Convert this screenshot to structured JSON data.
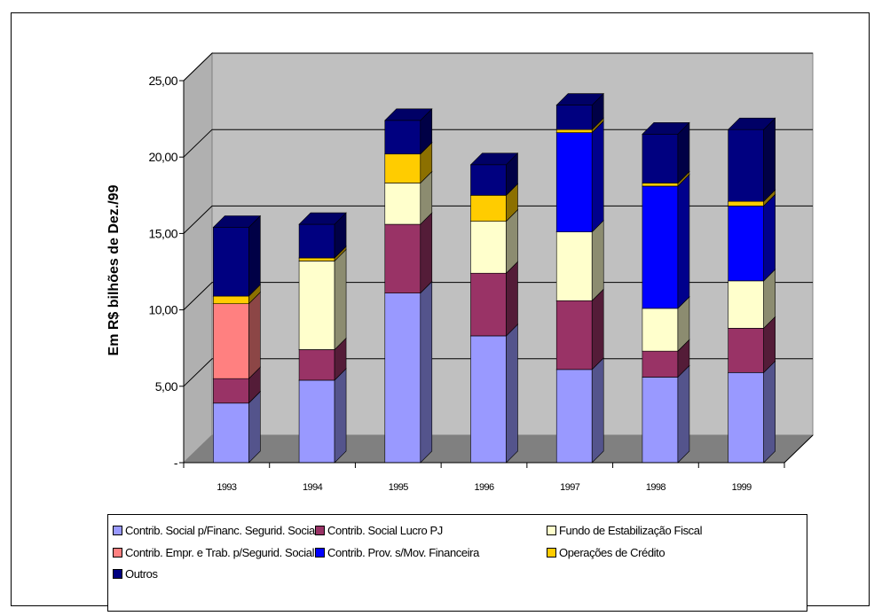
{
  "chart_data": {
    "type": "bar",
    "stacked": true,
    "three_d": true,
    "ylabel": "Em R$ bilhões de Dez./99",
    "ylim": [
      0,
      25
    ],
    "yticks": [
      "-",
      "5,00",
      "10,00",
      "15,00",
      "20,00",
      "25,00"
    ],
    "grid": true,
    "legend_position": "bottom",
    "categories": [
      "1993",
      "1994",
      "1995",
      "1996",
      "1997",
      "1998",
      "1999"
    ],
    "series": [
      {
        "name": "Contrib. Social p/Financ. Segurid. Social",
        "color": "#9999ff",
        "values": [
          3.9,
          5.4,
          11.1,
          8.3,
          6.1,
          5.6,
          5.9
        ]
      },
      {
        "name": "Contrib. Social Lucro PJ",
        "color": "#993366",
        "values": [
          1.6,
          2.0,
          4.5,
          4.1,
          4.5,
          1.7,
          2.9
        ]
      },
      {
        "name": "Fundo de Estabilização Fiscal",
        "color": "#ffffcc",
        "values": [
          0,
          5.8,
          2.7,
          3.4,
          4.5,
          2.8,
          3.1
        ]
      },
      {
        "name": "Contrib. Empr. e Trab. p/Segurid. Social",
        "color": "#ff8080",
        "values": [
          4.9,
          0,
          0,
          0,
          0,
          0,
          0
        ]
      },
      {
        "name": "Contrib. Prov. s/Mov. Financeira",
        "color": "#0000ff",
        "values": [
          0,
          0,
          0,
          0,
          6.5,
          8.0,
          4.9
        ]
      },
      {
        "name": "Operações de Crédito",
        "color": "#ffcc00",
        "values": [
          0.5,
          0.2,
          1.9,
          1.7,
          0.2,
          0.2,
          0.3
        ]
      },
      {
        "name": "Outros",
        "color": "#000080",
        "values": [
          4.5,
          2.2,
          2.2,
          2.0,
          1.6,
          3.2,
          4.7
        ]
      }
    ]
  },
  "legend_order": [
    {
      "series": 0
    },
    {
      "series": 1
    },
    {
      "series": 2
    },
    {
      "series": 3
    },
    {
      "series": 4
    },
    {
      "series": 5
    },
    {
      "series": 6
    }
  ]
}
